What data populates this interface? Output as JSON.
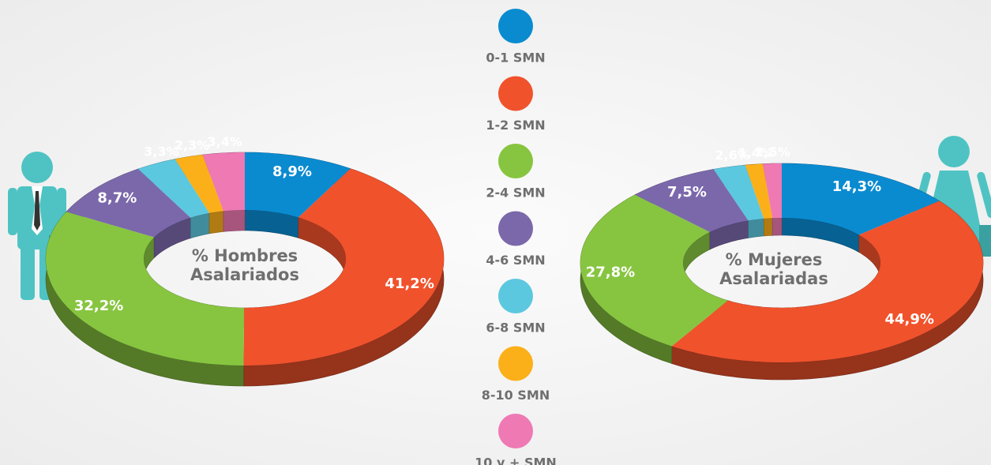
{
  "legend": {
    "categories": [
      "0-1 SMN",
      "1-2 SMN",
      "2-4 SMN",
      "4-6 SMN",
      "6-8 SMN",
      "8-10 SMN",
      "10 y + SMN"
    ],
    "colors": [
      "#0a8bd0",
      "#f0522c",
      "#87c540",
      "#7b68ab",
      "#5bc8e0",
      "#fbb019",
      "#ee79b3"
    ]
  },
  "chart_data": [
    {
      "type": "pie",
      "title": "% Hombres Asalariados",
      "values": [
        8.9,
        41.2,
        32.2,
        8.7,
        3.3,
        2.3,
        3.4
      ],
      "value_labels": [
        "8,9%",
        "41,2%",
        "32,2%",
        "8,7%",
        "3,3%",
        "2,3%",
        "3,4%"
      ]
    },
    {
      "type": "pie",
      "title": "% Mujeres Asalariadas",
      "values": [
        14.3,
        44.9,
        27.8,
        7.5,
        2.6,
        1.4,
        1.5
      ],
      "value_labels": [
        "14,3%",
        "44,9%",
        "27,8%",
        "7,5%",
        "2,6%",
        "1,4%",
        "1,5%"
      ]
    }
  ]
}
